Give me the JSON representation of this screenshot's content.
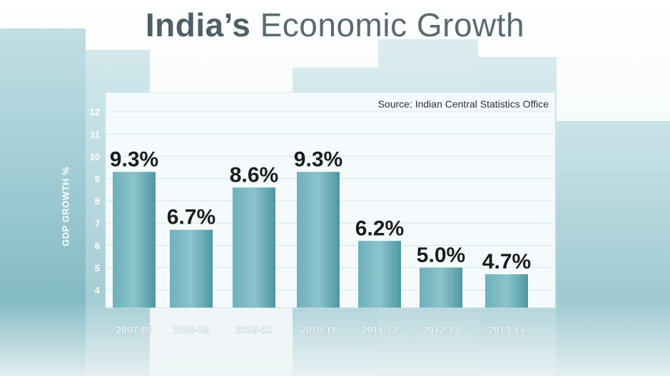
{
  "title_bold": "India’s",
  "title_rest": "Economic Growth",
  "source": "Source: Indian Central Statistics Office",
  "colors": {
    "bar_top": "#6fb0ba",
    "bar_bottom": "#4f97a2",
    "panel": "#f5fbfc"
  },
  "chart_data": {
    "type": "bar",
    "title": "India’s Economic Growth",
    "ylabel": "GDP GROWTH %",
    "categories": [
      "2007-08",
      "2008-09",
      "2009-10",
      "2010-11",
      "2011-12",
      "2012-13",
      "2013-14"
    ],
    "values": [
      9.3,
      6.7,
      8.6,
      9.3,
      6.2,
      5.0,
      4.7
    ],
    "labels": [
      "9.3%",
      "6.7%",
      "8.6%",
      "9.3%",
      "6.2%",
      "5.0%",
      "4.7%"
    ],
    "yticks": [
      4,
      5,
      6,
      7,
      8,
      9,
      10,
      11,
      12
    ],
    "ylim": [
      3.2,
      12.8
    ],
    "grid": true
  }
}
